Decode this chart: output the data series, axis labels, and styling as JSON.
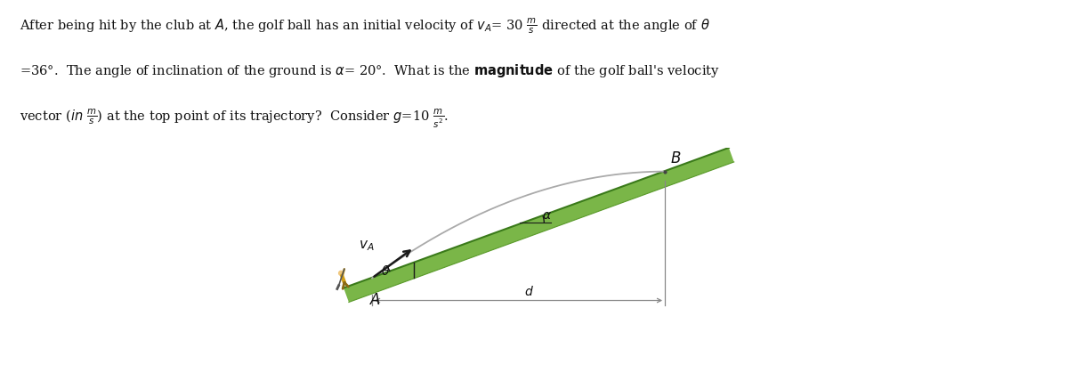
{
  "ground_color": "#7ab648",
  "ground_edge_color": "#3a7a1a",
  "ground_shadow_color": "#5a9a2a",
  "trajectory_color": "#aaaaaa",
  "arrow_color": "#1a1a1a",
  "line_color": "#888888",
  "label_color": "#111111",
  "alpha_deg": 20,
  "theta_from_horizontal_deg": 36,
  "background": "#ffffff",
  "fig_width": 12.0,
  "fig_height": 4.37,
  "golfer_body_color": "#d4a017",
  "golfer_leg_color": "#8b6914",
  "golfer_skin_color": "#f0c880",
  "golfer_club_color": "#555555"
}
